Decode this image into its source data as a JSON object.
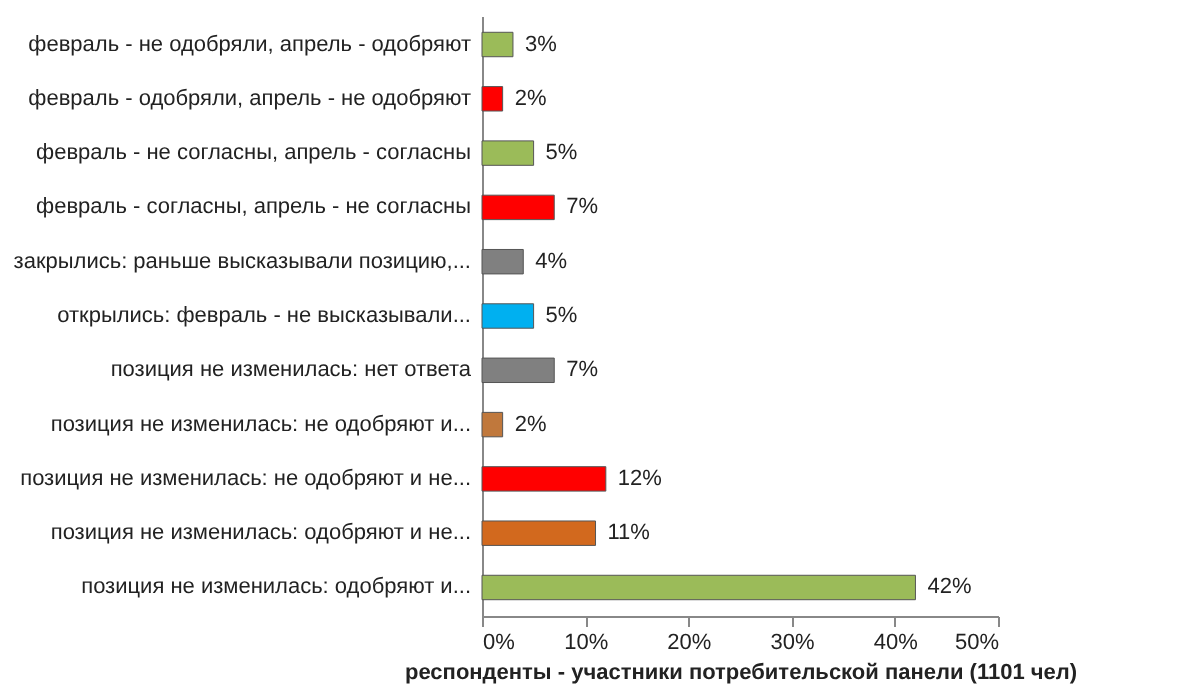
{
  "chart_data": {
    "type": "bar",
    "orientation": "horizontal",
    "categories": [
      "февраль - не одобряли, апрель - одобряют",
      "февраль - одобряли, апрель - не одобряют",
      "февраль - не согласны, апрель - согласны",
      "февраль - согласны, апрель - не согласны",
      "закрылись: раньше высказывали позицию,...",
      "открылись: февраль -  не высказывали...",
      "позиция не изменилась: нет ответа",
      "позиция не изменилась: не одобряют и...",
      "позиция не изменилась: не одобряют и не...",
      "позиция не изменилась: одобряют и не...",
      "позиция не изменилась: одобряют и..."
    ],
    "values": [
      3,
      2,
      5,
      7,
      4,
      5,
      7,
      2,
      12,
      11,
      42
    ],
    "value_labels": [
      "3%",
      "2%",
      "5%",
      "7%",
      "4%",
      "5%",
      "7%",
      "2%",
      "12%",
      "11%",
      "42%"
    ],
    "colors": [
      "#9bbb59",
      "#ff0000",
      "#9bbb59",
      "#ff0000",
      "#808080",
      "#00b0f0",
      "#808080",
      "#c0783c",
      "#ff0000",
      "#d2691e",
      "#9bbb59"
    ],
    "xlabel": "респонденты - участники потребительской панели (1101 чел)",
    "xlim": [
      0,
      50
    ],
    "xticks": [
      {
        "value": 0,
        "label": "0%"
      },
      {
        "value": 10,
        "label": "10%"
      },
      {
        "value": 20,
        "label": "20%"
      },
      {
        "value": 30,
        "label": "30%"
      },
      {
        "value": 40,
        "label": "40%"
      },
      {
        "value": 50,
        "label": "50%"
      }
    ],
    "grid": false,
    "legend": false
  }
}
